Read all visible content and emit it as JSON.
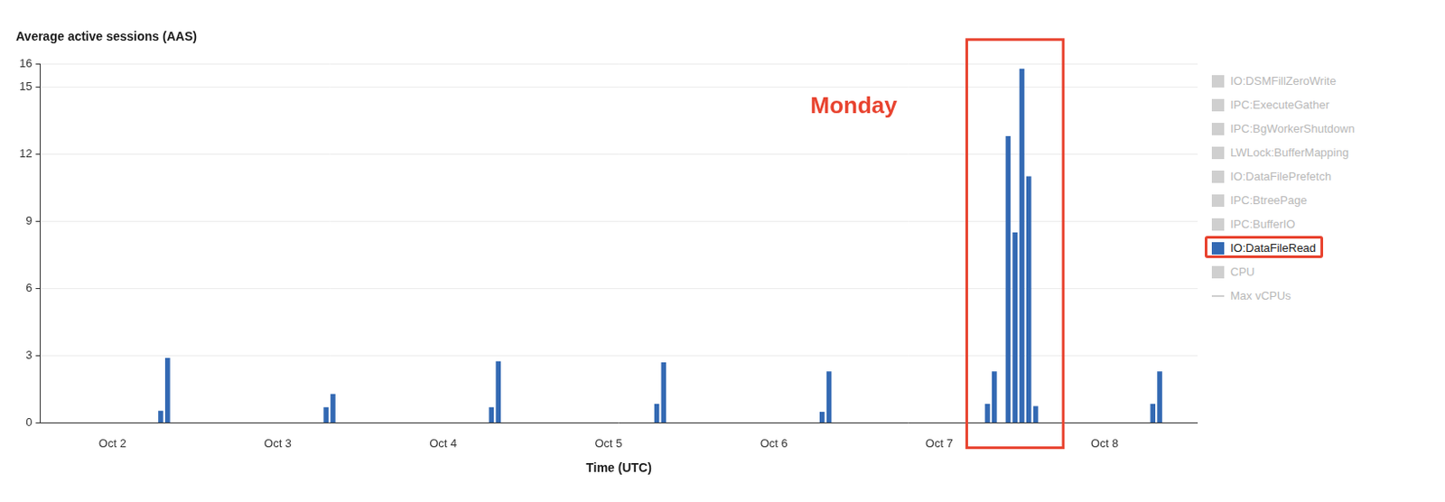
{
  "chart_data": {
    "type": "bar",
    "title": "Average active sessions (AAS)",
    "x_label": "Time (UTC)",
    "categories": [
      null,
      null,
      null,
      null,
      null,
      null,
      null,
      null,
      null,
      null,
      "Oct 2",
      null,
      null,
      null,
      null,
      null,
      null,
      null,
      null,
      null,
      null,
      null,
      null,
      null,
      null,
      null,
      null,
      null,
      null,
      null,
      null,
      null,
      null,
      null,
      "Oct 3",
      null,
      null,
      null,
      null,
      null,
      null,
      null,
      null,
      null,
      null,
      null,
      null,
      null,
      null,
      null,
      null,
      null,
      null,
      null,
      null,
      null,
      null,
      null,
      "Oct 4",
      null,
      null,
      null,
      null,
      null,
      null,
      null,
      null,
      null,
      null,
      null,
      null,
      null,
      null,
      null,
      null,
      null,
      null,
      null,
      null,
      null,
      null,
      null,
      "Oct 5",
      null,
      null,
      null,
      null,
      null,
      null,
      null,
      null,
      null,
      null,
      null,
      null,
      null,
      null,
      null,
      null,
      null,
      null,
      null,
      null,
      null,
      null,
      null,
      "Oct 6",
      null,
      null,
      null,
      null,
      null,
      null,
      null,
      null,
      null,
      null,
      null,
      null,
      null,
      null,
      null,
      null,
      null,
      null,
      null,
      null,
      null,
      null,
      null,
      "Oct 7",
      null,
      null,
      null,
      null,
      null,
      null,
      null,
      null,
      null,
      null,
      null,
      null,
      null,
      null,
      null,
      null,
      null,
      null,
      null,
      null,
      null,
      null,
      null,
      "Oct 8",
      null,
      null,
      null,
      null,
      null,
      null,
      null,
      null,
      null,
      null,
      null,
      null,
      null
    ],
    "series": [
      {
        "name": "IO:DataFileRead",
        "color": "#3369b3",
        "values": [
          0,
          0,
          0,
          0,
          0,
          0,
          0,
          0,
          0,
          0,
          0,
          0,
          0,
          0,
          0,
          0,
          0,
          0.55,
          2.9,
          0,
          0,
          0,
          0,
          0,
          0,
          0,
          0,
          0,
          0,
          0,
          0,
          0,
          0,
          0,
          0,
          0,
          0,
          0,
          0,
          0,
          0,
          0.7,
          1.3,
          0,
          0,
          0,
          0,
          0,
          0,
          0,
          0,
          0,
          0,
          0,
          0,
          0,
          0,
          0,
          0,
          0,
          0,
          0,
          0,
          0,
          0,
          0.7,
          2.75,
          0,
          0,
          0,
          0,
          0,
          0,
          0,
          0,
          0,
          0,
          0,
          0,
          0,
          0,
          0,
          0,
          0,
          0,
          0,
          0,
          0,
          0,
          0.85,
          2.7,
          0,
          0,
          0,
          0,
          0,
          0,
          0,
          0,
          0,
          0,
          0,
          0,
          0,
          0,
          0,
          0,
          0,
          0,
          0,
          0,
          0,
          0,
          0.5,
          2.3,
          0,
          0,
          0,
          0,
          0,
          0,
          0,
          0,
          0,
          0,
          0,
          0,
          0,
          0,
          0,
          0,
          0,
          0,
          0,
          0,
          0,
          0,
          0.85,
          2.3,
          0,
          12.8,
          8.5,
          15.8,
          11,
          0.75,
          0,
          0,
          0,
          0,
          0,
          0,
          0,
          0,
          0,
          0,
          0,
          0,
          0,
          0,
          0,
          0,
          0.85,
          2.3,
          0,
          0,
          0,
          0,
          0
        ]
      }
    ],
    "legend_items": [
      {
        "name": "IO:DSMFillZeroWrite",
        "marker": "square"
      },
      {
        "name": "IPC:ExecuteGather",
        "marker": "square"
      },
      {
        "name": "IPC:BgWorkerShutdown",
        "marker": "square"
      },
      {
        "name": "LWLock:BufferMapping",
        "marker": "square"
      },
      {
        "name": "IO:DataFilePrefetch",
        "marker": "square"
      },
      {
        "name": "IPC:BtreePage",
        "marker": "square"
      },
      {
        "name": "IPC:BufferIO",
        "marker": "square"
      },
      {
        "name": "IO:DataFileRead",
        "marker": "square"
      },
      {
        "name": "CPU",
        "marker": "square"
      },
      {
        "name": "Max vCPUs",
        "marker": "line"
      }
    ],
    "annotations": [
      {
        "text": "Monday",
        "color": "#e8432f"
      }
    ],
    "ylim": [
      0,
      16
    ],
    "yticks": [
      0,
      3,
      6,
      9,
      12,
      15,
      16
    ],
    "grid": true
  }
}
